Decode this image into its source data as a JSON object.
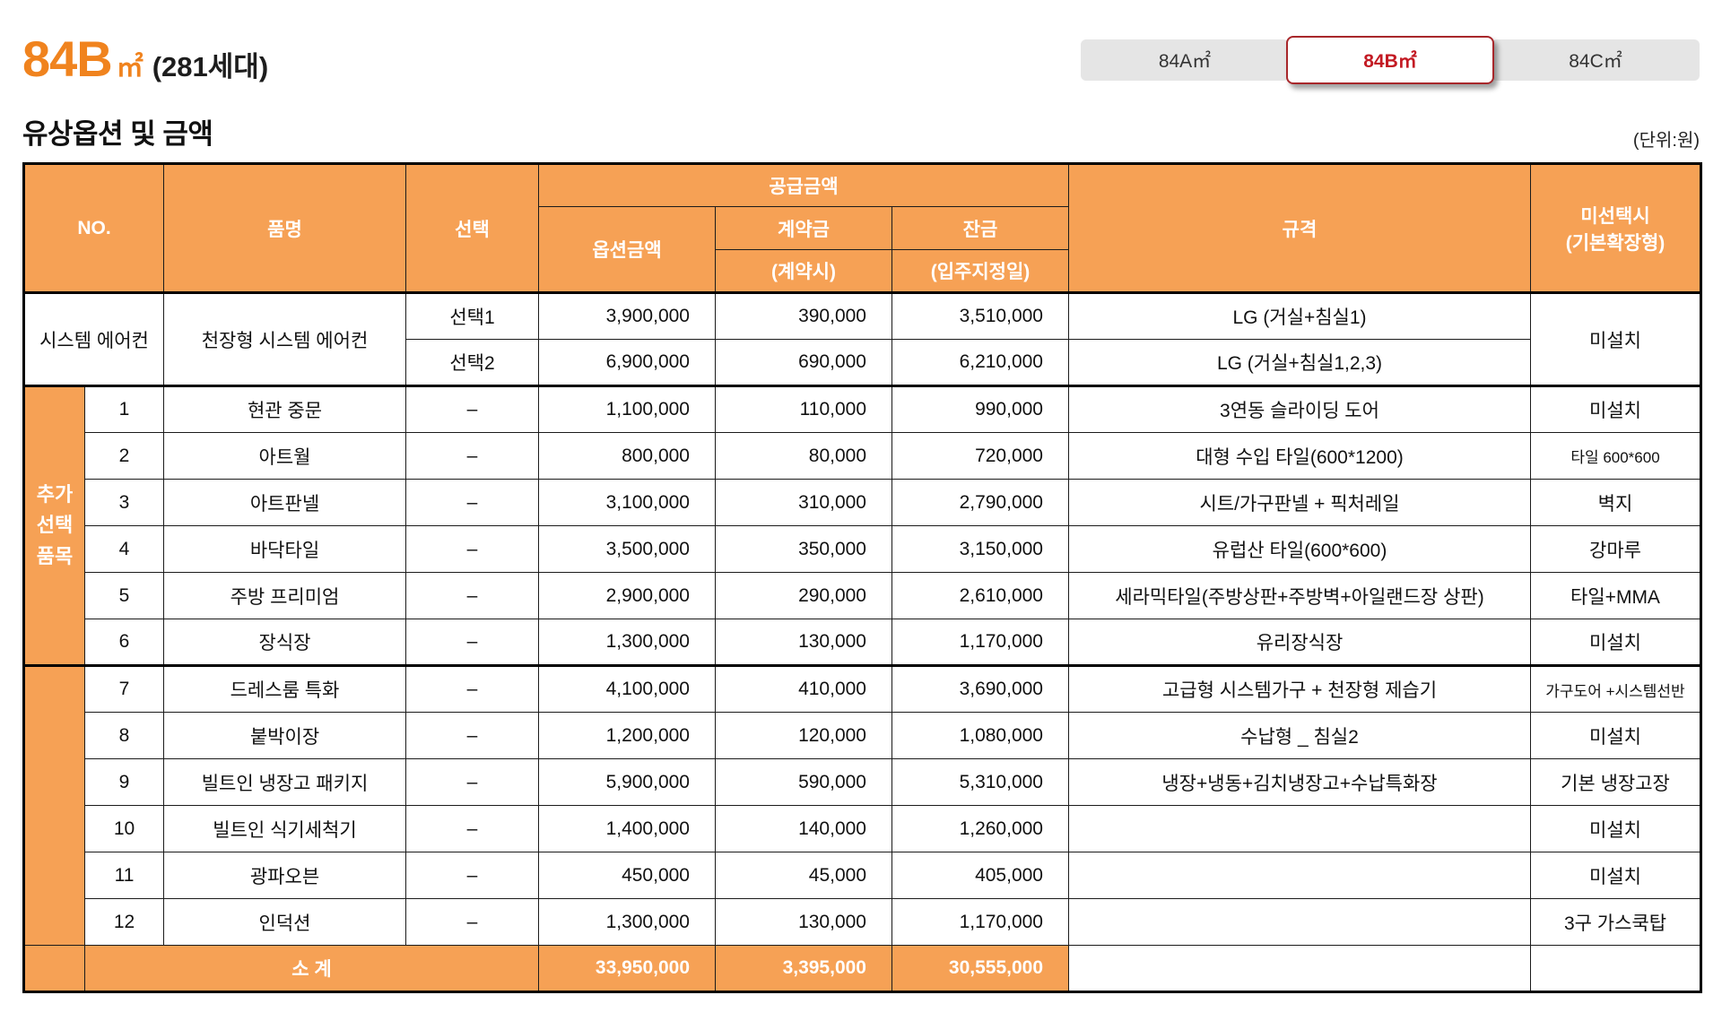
{
  "page": {
    "title_main": "84B",
    "title_unit": "㎡",
    "title_sub": "(281세대)",
    "section_title": "유상옵션 및 금액",
    "unit_note": "(단위:원)"
  },
  "colors": {
    "orange": "#F6A155",
    "title_orange": "#F0831E",
    "active_tab_red": "#C31A23"
  },
  "tabs": [
    {
      "id": "tab-84a",
      "label": "84A㎡",
      "active": false
    },
    {
      "id": "tab-84b",
      "label": "84B㎡",
      "active": true
    },
    {
      "id": "tab-84c",
      "label": "84C㎡",
      "active": false
    }
  ],
  "table": {
    "header": {
      "no": "NO.",
      "name": "품명",
      "select": "선택",
      "supply": "공급금액",
      "option_amount": "옵션금액",
      "down_payment": "계약금",
      "down_payment_sub": "(계약시)",
      "balance": "잔금",
      "balance_sub": "(입주지정일)",
      "spec": "규격",
      "unselected_line1": "미선택시",
      "unselected_line2": "(기본확장형)"
    },
    "aircon": {
      "group_label": "시스템 에어컨",
      "name": "천장형 시스템 에어컨",
      "unselected": "미설치",
      "rows": [
        {
          "select": "선택1",
          "option": "3,900,000",
          "down": "390,000",
          "balance": "3,510,000",
          "spec": "LG (거실+침실1)"
        },
        {
          "select": "선택2",
          "option": "6,900,000",
          "down": "690,000",
          "balance": "6,210,000",
          "spec": "LG (거실+침실1,2,3)"
        }
      ]
    },
    "additional": {
      "group_label": [
        "추가",
        "선택",
        "품목"
      ],
      "rows": [
        {
          "no": "1",
          "name": "현관 중문",
          "select": "–",
          "option": "1,100,000",
          "down": "110,000",
          "balance": "990,000",
          "spec": "3연동 슬라이딩 도어",
          "unselected": "미설치"
        },
        {
          "no": "2",
          "name": "아트월",
          "select": "–",
          "option": "800,000",
          "down": "80,000",
          "balance": "720,000",
          "spec": "대형 수입 타일(600*1200)",
          "unselected": "타일 600*600"
        },
        {
          "no": "3",
          "name": "아트판넬",
          "select": "–",
          "option": "3,100,000",
          "down": "310,000",
          "balance": "2,790,000",
          "spec": "시트/가구판넬 + 픽처레일",
          "unselected": "벽지"
        },
        {
          "no": "4",
          "name": "바닥타일",
          "select": "–",
          "option": "3,500,000",
          "down": "350,000",
          "balance": "3,150,000",
          "spec": "유럽산 타일(600*600)",
          "unselected": "강마루"
        },
        {
          "no": "5",
          "name": "주방 프리미엄",
          "select": "–",
          "option": "2,900,000",
          "down": "290,000",
          "balance": "2,610,000",
          "spec": "세라믹타일(주방상판+주방벽+아일랜드장 상판)",
          "unselected": "타일+MMA"
        },
        {
          "no": "6",
          "name": "장식장",
          "select": "–",
          "option": "1,300,000",
          "down": "130,000",
          "balance": "1,170,000",
          "spec": "유리장식장",
          "unselected": "미설치"
        },
        {
          "no": "7",
          "name": "드레스룸 특화",
          "select": "–",
          "option": "4,100,000",
          "down": "410,000",
          "balance": "3,690,000",
          "spec": "고급형 시스템가구 + 천장형 제습기",
          "unselected": "가구도어 +시스템선반"
        },
        {
          "no": "8",
          "name": "붙박이장",
          "select": "–",
          "option": "1,200,000",
          "down": "120,000",
          "balance": "1,080,000",
          "spec": "수납형 _ 침실2",
          "unselected": "미설치"
        },
        {
          "no": "9",
          "name": "빌트인 냉장고 패키지",
          "select": "–",
          "option": "5,900,000",
          "down": "590,000",
          "balance": "5,310,000",
          "spec": "냉장+냉동+김치냉장고+수납특화장",
          "unselected": "기본 냉장고장"
        },
        {
          "no": "10",
          "name": "빌트인 식기세척기",
          "select": "–",
          "option": "1,400,000",
          "down": "140,000",
          "balance": "1,260,000",
          "spec": "",
          "unselected": "미설치"
        },
        {
          "no": "11",
          "name": "광파오븐",
          "select": "–",
          "option": "450,000",
          "down": "45,000",
          "balance": "405,000",
          "spec": "",
          "unselected": "미설치"
        },
        {
          "no": "12",
          "name": "인덕션",
          "select": "–",
          "option": "1,300,000",
          "down": "130,000",
          "balance": "1,170,000",
          "spec": "",
          "unselected": "3구 가스쿡탑"
        }
      ]
    },
    "subtotal": {
      "label": "소 계",
      "option": "33,950,000",
      "down": "3,395,000",
      "balance": "30,555,000"
    }
  }
}
